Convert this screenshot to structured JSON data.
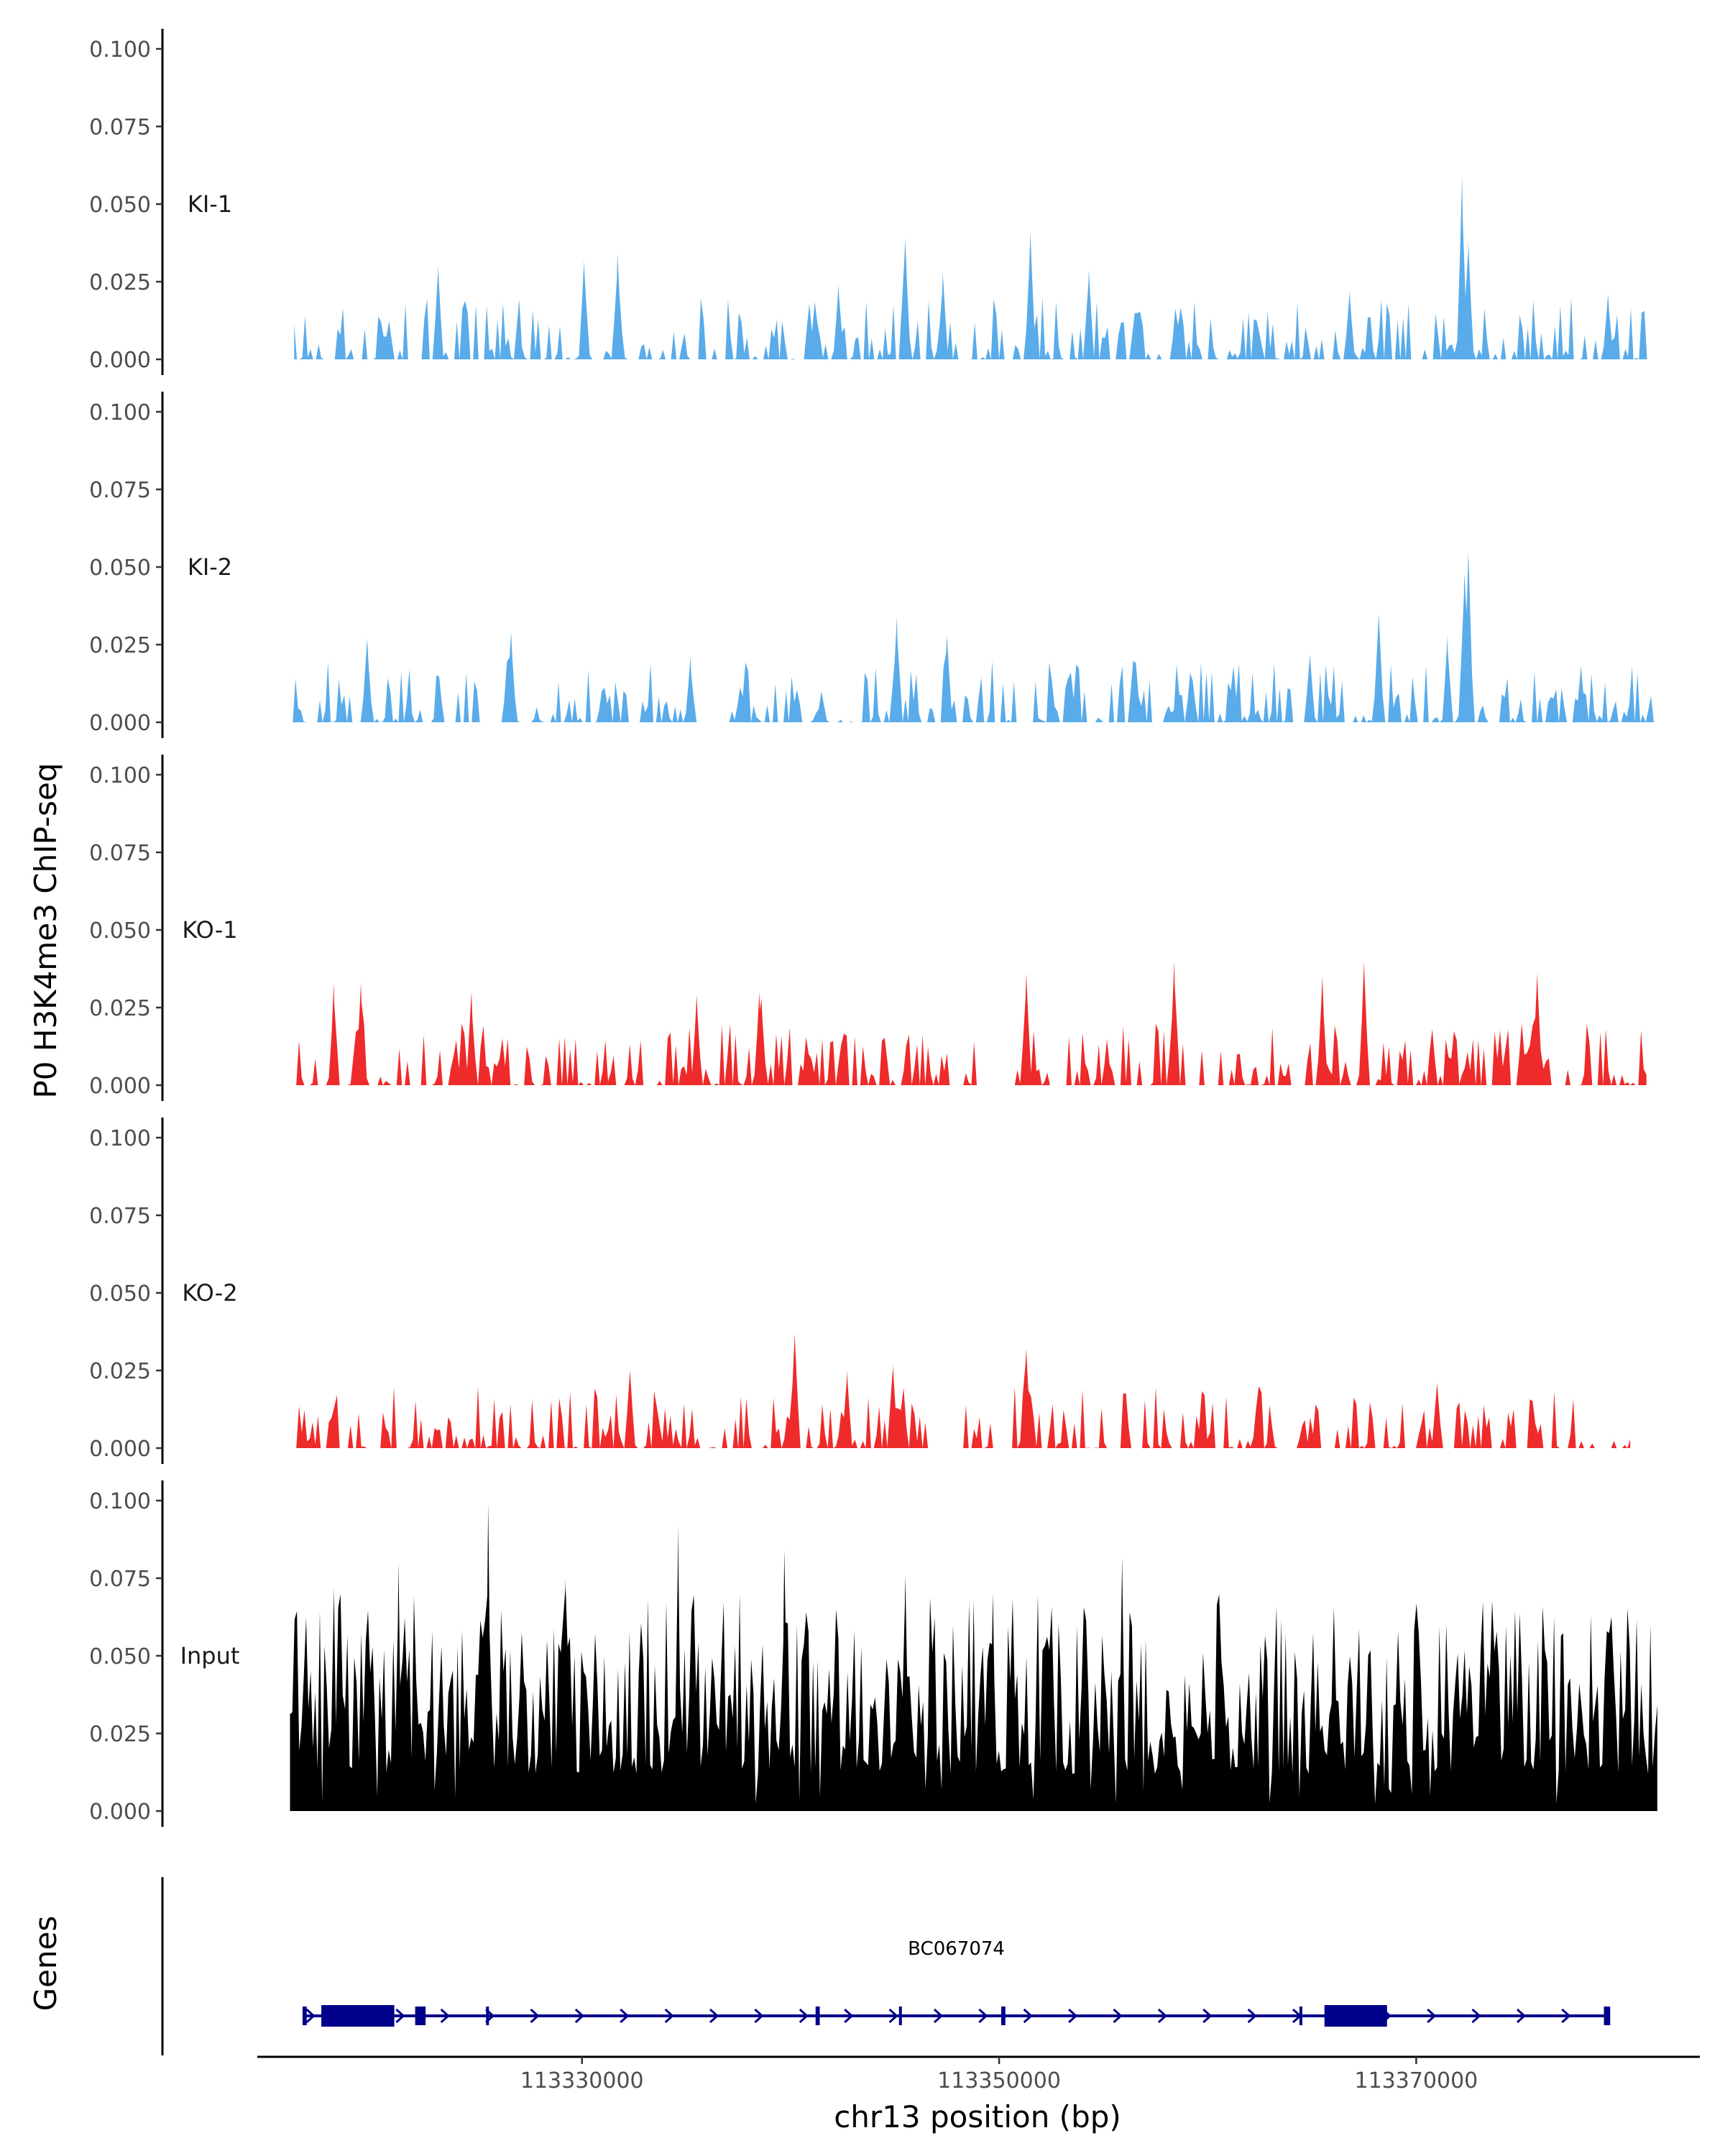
{
  "chart_data": {
    "type": "area",
    "ylabel": "P0 H3K4me3 ChIP-seq",
    "xlabel": "chr13 position (bp)",
    "xlim": [
      113314500,
      113383600
    ],
    "x_ticks": [
      113330000,
      113350000,
      113370000
    ],
    "x_tick_labels": [
      "113330000",
      "113350000",
      "113370000"
    ],
    "y_ticks": [
      0.0,
      0.025,
      0.05,
      0.075,
      0.1
    ],
    "y_tick_labels": [
      "0.000",
      "0.025",
      "0.050",
      "0.075",
      "0.100"
    ],
    "ylim": [
      0,
      0.1
    ],
    "colors": {
      "ki": "#5aabe9",
      "ko": "#ee2a2a",
      "input": "#000000",
      "gene": "#00008b"
    },
    "tracks": [
      {
        "name": "KI-1",
        "color": "#5aabe9",
        "coverage_start": 113316200,
        "coverage_end": 113381600,
        "peaks": [
          {
            "x": 113323100,
            "y": 0.03
          },
          {
            "x": 113330100,
            "y": 0.032
          },
          {
            "x": 113331700,
            "y": 0.034
          },
          {
            "x": 113345500,
            "y": 0.039
          },
          {
            "x": 113347300,
            "y": 0.028
          },
          {
            "x": 113351500,
            "y": 0.041
          },
          {
            "x": 113342300,
            "y": 0.024
          },
          {
            "x": 113354300,
            "y": 0.029
          },
          {
            "x": 113372200,
            "y": 0.059
          },
          {
            "x": 113379200,
            "y": 0.021
          },
          {
            "x": 113372500,
            "y": 0.038
          },
          {
            "x": 113366800,
            "y": 0.022
          }
        ]
      },
      {
        "name": "KI-2",
        "color": "#5aabe9",
        "coverage_start": 113316000,
        "coverage_end": 113381600,
        "peaks": [
          {
            "x": 113319700,
            "y": 0.027
          },
          {
            "x": 113326600,
            "y": 0.029
          },
          {
            "x": 113335200,
            "y": 0.021
          },
          {
            "x": 113345100,
            "y": 0.034
          },
          {
            "x": 113347500,
            "y": 0.028
          },
          {
            "x": 113364900,
            "y": 0.022
          },
          {
            "x": 113368200,
            "y": 0.035
          },
          {
            "x": 113371500,
            "y": 0.028
          },
          {
            "x": 113372500,
            "y": 0.055
          },
          {
            "x": 113372300,
            "y": 0.048
          },
          {
            "x": 113377900,
            "y": 0.018
          }
        ]
      },
      {
        "name": "KO-1",
        "color": "#ee2a2a",
        "coverage_start": 113316300,
        "coverage_end": 113381100,
        "peaks": [
          {
            "x": 113318100,
            "y": 0.033
          },
          {
            "x": 113319400,
            "y": 0.033
          },
          {
            "x": 113324700,
            "y": 0.03
          },
          {
            "x": 113335500,
            "y": 0.029
          },
          {
            "x": 113338500,
            "y": 0.03
          },
          {
            "x": 113351300,
            "y": 0.036
          },
          {
            "x": 113358400,
            "y": 0.04
          },
          {
            "x": 113365500,
            "y": 0.035
          },
          {
            "x": 113367500,
            "y": 0.04
          },
          {
            "x": 113375800,
            "y": 0.036
          },
          {
            "x": 113338600,
            "y": 0.028
          }
        ]
      },
      {
        "name": "KO-2",
        "color": "#ee2a2a",
        "coverage_start": 113316300,
        "coverage_end": 113380300,
        "peaks": [
          {
            "x": 113332300,
            "y": 0.025
          },
          {
            "x": 113340200,
            "y": 0.037
          },
          {
            "x": 113342700,
            "y": 0.025
          },
          {
            "x": 113344900,
            "y": 0.027
          },
          {
            "x": 113351300,
            "y": 0.032
          },
          {
            "x": 113371000,
            "y": 0.021
          }
        ]
      },
      {
        "name": "Input",
        "color": "#000000",
        "coverage_start": 113316000,
        "coverage_end": 113381600,
        "peaks": [
          {
            "x": 113325500,
            "y": 0.099
          },
          {
            "x": 113334600,
            "y": 0.092
          },
          {
            "x": 113339700,
            "y": 0.084
          },
          {
            "x": 113355900,
            "y": 0.082
          },
          {
            "x": 113345500,
            "y": 0.076
          },
          {
            "x": 113349700,
            "y": 0.07
          },
          {
            "x": 113321200,
            "y": 0.08
          },
          {
            "x": 113318100,
            "y": 0.072
          },
          {
            "x": 113329200,
            "y": 0.075
          }
        ]
      }
    ],
    "genes_panel": {
      "ylabel": "Genes",
      "gene": {
        "name": "BC067074",
        "start": 113316600,
        "end": 113379300,
        "strand": "+",
        "exons": [
          {
            "start": 113316600,
            "end": 113316800
          },
          {
            "start": 113317500,
            "end": 113321000
          },
          {
            "start": 113322000,
            "end": 113322500
          },
          {
            "start": 113325400,
            "end": 113325500
          },
          {
            "start": 113341200,
            "end": 113341400
          },
          {
            "start": 113345200,
            "end": 113345300
          },
          {
            "start": 113350100,
            "end": 113350300
          },
          {
            "start": 113364400,
            "end": 113364500
          },
          {
            "start": 113365600,
            "end": 113368600
          },
          {
            "start": 113379000,
            "end": 113379300
          }
        ]
      }
    }
  }
}
